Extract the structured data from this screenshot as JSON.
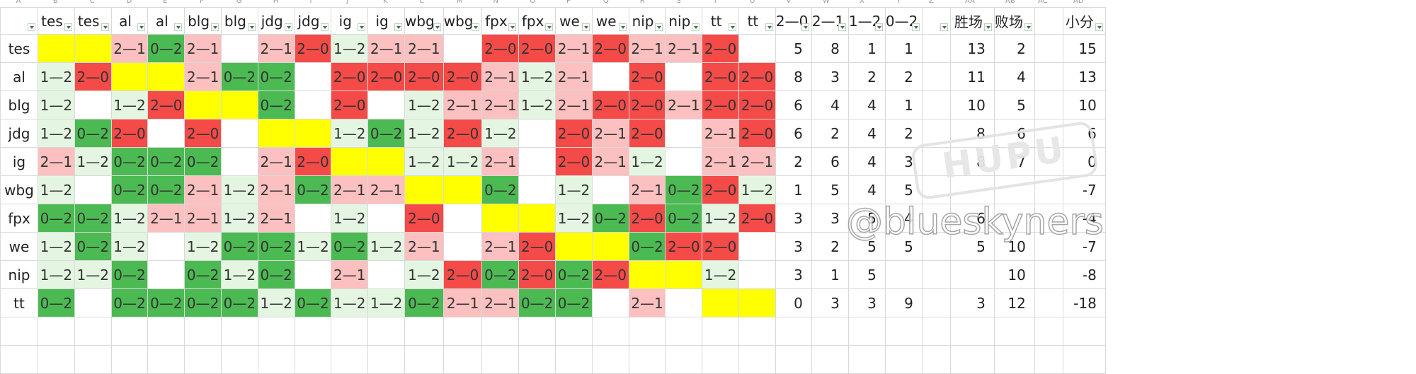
{
  "column_letters": [
    "A",
    "B",
    "C",
    "D",
    "E",
    "F",
    "G",
    "H",
    "I",
    "J",
    "K",
    "L",
    "M",
    "N",
    "O",
    "P",
    "Q",
    "R",
    "S",
    "T",
    "U",
    "V",
    "W",
    "X",
    "Y",
    "Z",
    "AA",
    "AB",
    "AC",
    "AD"
  ],
  "header_row": {
    "team_col": "",
    "opponent_cols": [
      "tes",
      "tes",
      "al",
      "al",
      "blg",
      "blg",
      "jdg",
      "jdg",
      "ig",
      "ig",
      "wbg",
      "wbg",
      "fpx",
      "fpx",
      "we",
      "we",
      "nip",
      "nip",
      "tt",
      "tt"
    ],
    "stat_cols": [
      "2—0",
      "2—1",
      "1—2",
      "0—2"
    ],
    "extra_cols": [
      "",
      "胜场",
      "败场",
      "",
      "小分"
    ]
  },
  "colors": {
    "yellow": "#ffff00",
    "red": "#f44a48",
    "pink": "#fbc0bf",
    "green": "#4cba52",
    "light_green": "#e4f6e2"
  },
  "rows": [
    {
      "team": "tes",
      "cells": [
        [
          "",
          "y"
        ],
        [
          "",
          "y"
        ],
        [
          "2—1",
          "p"
        ],
        [
          "0—2",
          "g"
        ],
        [
          "2—1",
          "p"
        ],
        [
          "",
          ""
        ],
        [
          "2—1",
          "p"
        ],
        [
          "2—0",
          "r"
        ],
        [
          "1—2",
          "l"
        ],
        [
          "2—1",
          "p"
        ],
        [
          "2—1",
          "p"
        ],
        [
          "",
          ""
        ],
        [
          "2—0",
          "r"
        ],
        [
          "2—0",
          "r"
        ],
        [
          "2—1",
          "p"
        ],
        [
          "2—0",
          "r"
        ],
        [
          "2—1",
          "p"
        ],
        [
          "2—1",
          "p"
        ],
        [
          "2—0",
          "r"
        ],
        [
          "",
          ""
        ]
      ],
      "stats": [
        "5",
        "8",
        "1",
        "1"
      ],
      "wins": "13",
      "losses": "2",
      "small": "15"
    },
    {
      "team": "al",
      "cells": [
        [
          "1—2",
          "l"
        ],
        [
          "2—0",
          "r"
        ],
        [
          "",
          "y"
        ],
        [
          "",
          "y"
        ],
        [
          "2—1",
          "p"
        ],
        [
          "0—2",
          "g"
        ],
        [
          "0—2",
          "g"
        ],
        [
          "",
          ""
        ],
        [
          "2—0",
          "r"
        ],
        [
          "2—0",
          "r"
        ],
        [
          "2—0",
          "r"
        ],
        [
          "2—0",
          "r"
        ],
        [
          "2—1",
          "p"
        ],
        [
          "1—2",
          "l"
        ],
        [
          "2—1",
          "p"
        ],
        [
          "",
          ""
        ],
        [
          "2—0",
          "r"
        ],
        [
          "",
          ""
        ],
        [
          "2—0",
          "r"
        ],
        [
          "2—0",
          "r"
        ]
      ],
      "stats": [
        "8",
        "3",
        "2",
        "2"
      ],
      "wins": "11",
      "losses": "4",
      "small": "13"
    },
    {
      "team": "blg",
      "cells": [
        [
          "1—2",
          "l"
        ],
        [
          "",
          ""
        ],
        [
          "1—2",
          "l"
        ],
        [
          "2—0",
          "r"
        ],
        [
          "",
          "y"
        ],
        [
          "",
          "y"
        ],
        [
          "0—2",
          "g"
        ],
        [
          "",
          ""
        ],
        [
          "2—0",
          "r"
        ],
        [
          "",
          ""
        ],
        [
          "1—2",
          "l"
        ],
        [
          "2—1",
          "p"
        ],
        [
          "2—1",
          "p"
        ],
        [
          "1—2",
          "l"
        ],
        [
          "2—1",
          "p"
        ],
        [
          "2—0",
          "r"
        ],
        [
          "2—0",
          "r"
        ],
        [
          "2—1",
          "p"
        ],
        [
          "2—0",
          "r"
        ],
        [
          "2—0",
          "r"
        ]
      ],
      "stats": [
        "6",
        "4",
        "4",
        "1"
      ],
      "wins": "10",
      "losses": "5",
      "small": "10"
    },
    {
      "team": "jdg",
      "cells": [
        [
          "1—2",
          "l"
        ],
        [
          "0—2",
          "g"
        ],
        [
          "2—0",
          "r"
        ],
        [
          "",
          ""
        ],
        [
          "2—0",
          "r"
        ],
        [
          "",
          ""
        ],
        [
          "",
          "y"
        ],
        [
          "",
          "y"
        ],
        [
          "1—2",
          "l"
        ],
        [
          "0—2",
          "g"
        ],
        [
          "1—2",
          "l"
        ],
        [
          "2—0",
          "r"
        ],
        [
          "1—2",
          "l"
        ],
        [
          "",
          ""
        ],
        [
          "2—0",
          "r"
        ],
        [
          "2—1",
          "p"
        ],
        [
          "2—0",
          "r"
        ],
        [
          "",
          ""
        ],
        [
          "2—1",
          "p"
        ],
        [
          "2—0",
          "r"
        ]
      ],
      "stats": [
        "6",
        "2",
        "4",
        "2"
      ],
      "wins": "8",
      "losses": "6",
      "small": "6"
    },
    {
      "team": "ig",
      "cells": [
        [
          "2—1",
          "p"
        ],
        [
          "1—2",
          "l"
        ],
        [
          "0—2",
          "g"
        ],
        [
          "0—2",
          "g"
        ],
        [
          "0—2",
          "g"
        ],
        [
          "",
          ""
        ],
        [
          "2—1",
          "p"
        ],
        [
          "2—0",
          "r"
        ],
        [
          "",
          "y"
        ],
        [
          "",
          "y"
        ],
        [
          "1—2",
          "l"
        ],
        [
          "1—2",
          "l"
        ],
        [
          "2—1",
          "p"
        ],
        [
          "",
          ""
        ],
        [
          "2—0",
          "r"
        ],
        [
          "2—1",
          "p"
        ],
        [
          "1—2",
          "l"
        ],
        [
          "",
          ""
        ],
        [
          "2—1",
          "p"
        ],
        [
          "2—1",
          "p"
        ]
      ],
      "stats": [
        "2",
        "6",
        "4",
        "3"
      ],
      "wins": "8",
      "losses": "7",
      "small": "0"
    },
    {
      "team": "wbg",
      "cells": [
        [
          "1—2",
          "l"
        ],
        [
          "",
          ""
        ],
        [
          "0—2",
          "g"
        ],
        [
          "0—2",
          "g"
        ],
        [
          "2—1",
          "p"
        ],
        [
          "1—2",
          "l"
        ],
        [
          "2—1",
          "p"
        ],
        [
          "0—2",
          "g"
        ],
        [
          "2—1",
          "p"
        ],
        [
          "2—1",
          "p"
        ],
        [
          "",
          "y"
        ],
        [
          "",
          "y"
        ],
        [
          "0—2",
          "g"
        ],
        [
          "",
          ""
        ],
        [
          "1—2",
          "l"
        ],
        [
          "",
          ""
        ],
        [
          "2—1",
          "p"
        ],
        [
          "0—2",
          "g"
        ],
        [
          "2—0",
          "r"
        ],
        [
          "1—2",
          "l"
        ]
      ],
      "stats": [
        "1",
        "5",
        "4",
        "5"
      ],
      "wins": "",
      "losses": "",
      "small": "-7"
    },
    {
      "team": "fpx",
      "cells": [
        [
          "0—2",
          "g"
        ],
        [
          "0—2",
          "g"
        ],
        [
          "1—2",
          "l"
        ],
        [
          "2—1",
          "p"
        ],
        [
          "2—1",
          "p"
        ],
        [
          "1—2",
          "l"
        ],
        [
          "2—1",
          "p"
        ],
        [
          "",
          ""
        ],
        [
          "1—2",
          "l"
        ],
        [
          "",
          ""
        ],
        [
          "2—0",
          "r"
        ],
        [
          "",
          ""
        ],
        [
          "",
          "y"
        ],
        [
          "",
          "y"
        ],
        [
          "1—2",
          "l"
        ],
        [
          "0—2",
          "g"
        ],
        [
          "2—0",
          "r"
        ],
        [
          "0—2",
          "g"
        ],
        [
          "1—2",
          "l"
        ],
        [
          "2—0",
          "r"
        ]
      ],
      "stats": [
        "3",
        "3",
        "5",
        "4"
      ],
      "wins": "6",
      "losses": "",
      "small": "-4"
    },
    {
      "team": "we",
      "cells": [
        [
          "1—2",
          "l"
        ],
        [
          "0—2",
          "g"
        ],
        [
          "1—2",
          "l"
        ],
        [
          "",
          ""
        ],
        [
          "1—2",
          "l"
        ],
        [
          "0—2",
          "g"
        ],
        [
          "0—2",
          "g"
        ],
        [
          "1—2",
          "l"
        ],
        [
          "0—2",
          "g"
        ],
        [
          "1—2",
          "l"
        ],
        [
          "2—1",
          "p"
        ],
        [
          "",
          ""
        ],
        [
          "2—1",
          "p"
        ],
        [
          "2—0",
          "r"
        ],
        [
          "",
          "y"
        ],
        [
          "",
          "y"
        ],
        [
          "0—2",
          "g"
        ],
        [
          "2—0",
          "r"
        ],
        [
          "2—0",
          "r"
        ],
        [
          "",
          ""
        ]
      ],
      "stats": [
        "3",
        "2",
        "5",
        "5"
      ],
      "wins": "5",
      "losses": "10",
      "small": "-7"
    },
    {
      "team": "nip",
      "cells": [
        [
          "1—2",
          "l"
        ],
        [
          "1—2",
          "l"
        ],
        [
          "0—2",
          "g"
        ],
        [
          "",
          ""
        ],
        [
          "0—2",
          "g"
        ],
        [
          "1—2",
          "l"
        ],
        [
          "0—2",
          "g"
        ],
        [
          "",
          ""
        ],
        [
          "2—1",
          "p"
        ],
        [
          "",
          ""
        ],
        [
          "1—2",
          "l"
        ],
        [
          "2—0",
          "r"
        ],
        [
          "0—2",
          "g"
        ],
        [
          "2—0",
          "r"
        ],
        [
          "0—2",
          "g"
        ],
        [
          "2—0",
          "r"
        ],
        [
          "",
          "y"
        ],
        [
          "",
          "y"
        ],
        [
          "1—2",
          "l"
        ],
        [
          "",
          ""
        ]
      ],
      "stats": [
        "3",
        "1",
        "5",
        ""
      ],
      "wins": "",
      "losses": "10",
      "small": "-8"
    },
    {
      "team": "tt",
      "cells": [
        [
          "0—2",
          "g"
        ],
        [
          "",
          ""
        ],
        [
          "0—2",
          "g"
        ],
        [
          "0—2",
          "g"
        ],
        [
          "0—2",
          "g"
        ],
        [
          "0—2",
          "g"
        ],
        [
          "1—2",
          "l"
        ],
        [
          "0—2",
          "g"
        ],
        [
          "1—2",
          "l"
        ],
        [
          "1—2",
          "l"
        ],
        [
          "0—2",
          "g"
        ],
        [
          "2—1",
          "p"
        ],
        [
          "2—1",
          "p"
        ],
        [
          "0—2",
          "g"
        ],
        [
          "0—2",
          "g"
        ],
        [
          "",
          ""
        ],
        [
          "2—1",
          "p"
        ],
        [
          "",
          ""
        ],
        [
          "",
          "y"
        ],
        [
          "",
          "y"
        ]
      ],
      "stats": [
        "0",
        "3",
        "3",
        "9"
      ],
      "wins": "3",
      "losses": "12",
      "small": "-18"
    }
  ],
  "watermarks": {
    "hupu": "HUPU",
    "user": "@blueskyners"
  }
}
